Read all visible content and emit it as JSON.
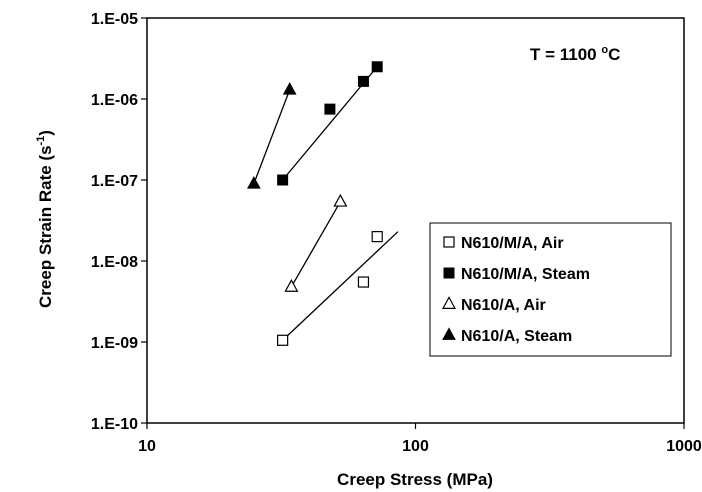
{
  "chart_data": {
    "type": "scatter",
    "title": "",
    "xlabel": "Creep Stress (MPa)",
    "ylabel_main": "Creep Strain Rate (s",
    "ylabel_sup": "-1",
    "ylabel_close": ")",
    "x_scale": "log",
    "y_scale": "log",
    "xlim": [
      10,
      1000
    ],
    "ylim": [
      1e-10,
      1e-05
    ],
    "x_ticks": [
      {
        "value": 10,
        "label": "10"
      },
      {
        "value": 100,
        "label": "100"
      },
      {
        "value": 1000,
        "label": "1000"
      }
    ],
    "y_ticks": [
      {
        "value": 1e-10,
        "label": "1.E-10"
      },
      {
        "value": 1e-09,
        "label": "1.E-09"
      },
      {
        "value": 1e-08,
        "label": "1.E-08"
      },
      {
        "value": 1e-07,
        "label": "1.E-07"
      },
      {
        "value": 1e-06,
        "label": "1.E-06"
      },
      {
        "value": 1e-05,
        "label": "1.E-05"
      }
    ],
    "grid": false,
    "legend_position": "right",
    "annotation": {
      "main": "T = 1100 ",
      "sup": "o",
      "unit": "C"
    },
    "series": [
      {
        "name": "N610/M/A, Air",
        "marker": "square-open",
        "points": [
          [
            32,
            1.05e-09
          ],
          [
            64,
            5.5e-09
          ],
          [
            72,
            2e-08
          ]
        ],
        "trendline": [
          [
            32,
            1.05e-09
          ],
          [
            86,
            2.3e-08
          ]
        ]
      },
      {
        "name": "N610/M/A, Steam",
        "marker": "square-filled",
        "points": [
          [
            32,
            1e-07
          ],
          [
            48,
            7.5e-07
          ],
          [
            64,
            1.65e-06
          ],
          [
            72,
            2.5e-06
          ]
        ],
        "trendline": [
          [
            32,
            1e-07
          ],
          [
            72,
            2.5e-06
          ]
        ]
      },
      {
        "name": "N610/A, Air",
        "marker": "triangle-open",
        "points": [
          [
            34.5,
            4.8e-09
          ],
          [
            52.5,
            5.4e-08
          ]
        ],
        "trendline": [
          [
            34.5,
            4.8e-09
          ],
          [
            52.5,
            5.4e-08
          ]
        ]
      },
      {
        "name": "N610/A, Steam",
        "marker": "triangle-filled",
        "points": [
          [
            25,
            9e-08
          ],
          [
            34,
            1.3e-06
          ]
        ],
        "trendline": [
          [
            25,
            9e-08
          ],
          [
            34,
            1.3e-06
          ]
        ]
      }
    ]
  }
}
